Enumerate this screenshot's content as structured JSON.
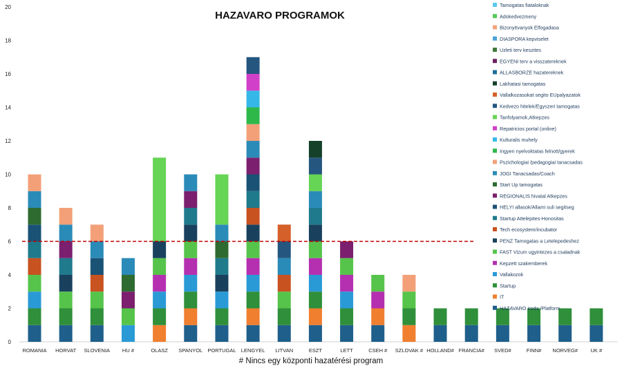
{
  "chart_data": {
    "type": "bar",
    "stacked": true,
    "title": "HAZAVARO PROGRAMOK",
    "footnote": "# Nincs egy központi hazatérési program",
    "ylim": [
      0,
      20
    ],
    "yticks": [
      0,
      2,
      4,
      6,
      8,
      10,
      12,
      14,
      16,
      18,
      20
    ],
    "reference_line": {
      "value": 6,
      "style": "dashed",
      "color": "#c00000"
    },
    "legend_position": "right",
    "categories": [
      "ROMANIA",
      "HORVAT",
      "SLOVENIA",
      "HU #",
      "OLASZ",
      "SPANYOL",
      "PORTUGAL",
      "LENGYEL",
      "LITVAN",
      "ESZT",
      "LETT",
      "CSEH #",
      "SZLOVAK #",
      "HOLLAND#",
      "FRANCIA#",
      "SVED#",
      "FINN#",
      "NORVEG#",
      "UK #"
    ],
    "series": [
      {
        "name": "HAZAVARO iroda /Platform",
        "color": "#1f5f8b",
        "values": [
          1,
          1,
          1,
          0,
          0,
          1,
          1,
          1,
          1,
          1,
          1,
          1,
          0,
          1,
          1,
          1,
          1,
          1,
          1
        ]
      },
      {
        "name": "IT",
        "color": "#f07f30",
        "values": [
          0,
          0,
          0,
          0,
          1,
          1,
          0,
          1,
          0,
          1,
          0,
          1,
          1,
          0,
          0,
          0,
          0,
          0,
          0
        ]
      },
      {
        "name": "Startup",
        "color": "#2f8f3a",
        "values": [
          1,
          1,
          1,
          0,
          1,
          1,
          1,
          1,
          1,
          1,
          1,
          0,
          1,
          1,
          1,
          1,
          1,
          1,
          1
        ]
      },
      {
        "name": "Vallakozok",
        "color": "#2a9ad6",
        "values": [
          1,
          0,
          0,
          1,
          1,
          1,
          1,
          1,
          0,
          1,
          1,
          0,
          0,
          0,
          0,
          0,
          0,
          0,
          0
        ]
      },
      {
        "name": "Kepzett szakemberek",
        "color": "#b530b0",
        "values": [
          0,
          0,
          0,
          0,
          1,
          1,
          0,
          1,
          0,
          1,
          1,
          1,
          0,
          0,
          0,
          0,
          0,
          0,
          0
        ]
      },
      {
        "name": "FAST Vizum ugyintezes a csaladnak",
        "color": "#56c44a",
        "values": [
          1,
          1,
          1,
          1,
          1,
          1,
          0,
          1,
          1,
          1,
          1,
          1,
          1,
          0,
          0,
          0,
          0,
          0,
          0
        ]
      },
      {
        "name": "PENZ Tamogatas a Letelepedeshez",
        "color": "#19415e",
        "values": [
          0,
          1,
          0,
          0,
          1,
          1,
          1,
          1,
          0,
          1,
          0,
          0,
          0,
          0,
          0,
          0,
          0,
          0,
          0
        ]
      },
      {
        "name": "Tech ecosystem/incubator",
        "color": "#c85220",
        "values": [
          1,
          0,
          1,
          0,
          0,
          0,
          0,
          1,
          1,
          0,
          0,
          0,
          0,
          0,
          0,
          0,
          0,
          0,
          0
        ]
      },
      {
        "name": "Startup Attelepites-Honositas",
        "color": "#1f7a8c",
        "values": [
          1,
          1,
          0,
          0,
          0,
          1,
          1,
          1,
          0,
          1,
          0,
          0,
          0,
          0,
          0,
          0,
          0,
          0,
          0
        ]
      },
      {
        "name": "HELYI allasok/Allami suli segitseg",
        "color": "#1a5276",
        "values": [
          1,
          0,
          1,
          0,
          0,
          0,
          0,
          1,
          0,
          0,
          0,
          0,
          0,
          0,
          0,
          0,
          0,
          0,
          0
        ]
      },
      {
        "name": "REGIONALIS hivatal Atkepzes",
        "color": "#7b1f6e",
        "values": [
          0,
          1,
          0,
          1,
          0,
          1,
          0,
          1,
          0,
          0,
          1,
          0,
          0,
          0,
          0,
          0,
          0,
          0,
          0
        ]
      },
      {
        "name": "Start Up tamogatas",
        "color": "#2e6b30",
        "values": [
          1,
          0,
          0,
          1,
          0,
          0,
          1,
          0,
          0,
          0,
          0,
          0,
          0,
          0,
          0,
          0,
          0,
          0,
          0
        ]
      },
      {
        "name": "JOGI Tanacsadas/Coach",
        "color": "#2b8bb8",
        "values": [
          1,
          1,
          1,
          1,
          0,
          1,
          1,
          1,
          1,
          1,
          0,
          0,
          0,
          0,
          0,
          0,
          0,
          0,
          0
        ]
      },
      {
        "name": "Pszichologiai /pedagogiai tanacsadas",
        "color": "#f3a078",
        "values": [
          1,
          1,
          1,
          0,
          0,
          0,
          0,
          1,
          0,
          0,
          0,
          0,
          1,
          0,
          0,
          0,
          0,
          0,
          0
        ]
      },
      {
        "name": "Ingyen nyelvoktatas felnott/gyerek",
        "color": "#2eb84a",
        "values": [
          0,
          0,
          0,
          0,
          0,
          0,
          0,
          1,
          0,
          0,
          0,
          0,
          0,
          0,
          0,
          0,
          0,
          0,
          0
        ]
      },
      {
        "name": "Kulturalis muhely",
        "color": "#35b8e8",
        "values": [
          0,
          0,
          0,
          0,
          0,
          0,
          0,
          1,
          0,
          0,
          0,
          0,
          0,
          0,
          0,
          0,
          0,
          0,
          0
        ]
      },
      {
        "name": "Repatricios portal (online)",
        "color": "#d140c8",
        "values": [
          0,
          0,
          0,
          0,
          0,
          0,
          0,
          1,
          0,
          0,
          0,
          0,
          0,
          0,
          0,
          0,
          0,
          0,
          0
        ]
      },
      {
        "name": "Tanfolyamok,Atkepzes",
        "color": "#66d455",
        "values": [
          0,
          0,
          0,
          0,
          5,
          0,
          3,
          0,
          0,
          1,
          0,
          0,
          0,
          0,
          0,
          0,
          0,
          0,
          0
        ]
      },
      {
        "name": "Kedvezo hitelek/Egyszeri tamogatas",
        "color": "#24567f",
        "values": [
          0,
          0,
          0,
          0,
          0,
          0,
          0,
          1,
          1,
          1,
          0,
          0,
          0,
          0,
          0,
          0,
          0,
          0,
          0
        ]
      },
      {
        "name": "Vallalkozasokat segito EUpalyazatok",
        "color": "#d5602a",
        "values": [
          0,
          0,
          0,
          0,
          0,
          0,
          0,
          0,
          1,
          0,
          0,
          0,
          0,
          0,
          0,
          0,
          0,
          0,
          0
        ]
      },
      {
        "name": "Lakhatasi tamogatas",
        "color": "#15402a",
        "values": [
          0,
          0,
          0,
          0,
          0,
          0,
          0,
          0,
          0,
          1,
          0,
          0,
          0,
          0,
          0,
          0,
          0,
          0,
          0
        ]
      },
      {
        "name": "ALLASBORZE hazatereknek",
        "color": "#1f6f9a",
        "values": [
          0,
          0,
          0,
          0,
          0,
          0,
          0,
          0,
          0,
          0,
          0,
          0,
          0,
          0,
          0,
          0,
          0,
          0,
          0
        ]
      },
      {
        "name": "EGYENI terv a visszatereknek",
        "color": "#6a1f5e",
        "values": [
          0,
          0,
          0,
          0,
          0,
          0,
          0,
          0,
          0,
          0,
          0,
          0,
          0,
          0,
          0,
          0,
          0,
          0,
          0
        ]
      },
      {
        "name": "Uzleti terv keszites",
        "color": "#3d7a3a",
        "values": [
          0,
          0,
          0,
          0,
          0,
          0,
          0,
          0,
          0,
          0,
          0,
          0,
          0,
          0,
          0,
          0,
          0,
          0,
          0
        ]
      },
      {
        "name": "DIASPORA kepviselet",
        "color": "#4aa3d8",
        "values": [
          0,
          0,
          0,
          0,
          0,
          0,
          0,
          0,
          0,
          0,
          0,
          0,
          0,
          0,
          0,
          0,
          0,
          0,
          0
        ]
      },
      {
        "name": "Bizonyitvanyok Elfogadasa",
        "color": "#f4a27e",
        "values": [
          0,
          0,
          0,
          0,
          0,
          0,
          0,
          0,
          0,
          0,
          0,
          0,
          0,
          0,
          0,
          0,
          0,
          0,
          0
        ]
      },
      {
        "name": "Adokedvezmeny",
        "color": "#58c95a",
        "values": [
          0,
          0,
          0,
          0,
          0,
          0,
          0,
          0,
          0,
          0,
          0,
          0,
          0,
          0,
          0,
          0,
          0,
          0,
          0
        ]
      },
      {
        "name": "Tamogatas fiataloknak",
        "color": "#5bc8ee",
        "values": [
          0,
          0,
          0,
          0,
          0,
          0,
          0,
          0,
          0,
          0,
          0,
          0,
          0,
          0,
          0,
          0,
          0,
          0,
          0
        ]
      }
    ]
  }
}
